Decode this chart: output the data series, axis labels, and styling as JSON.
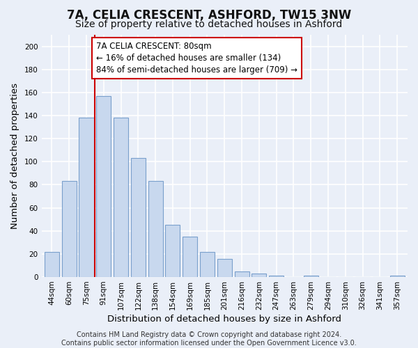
{
  "title": "7A, CELIA CRESCENT, ASHFORD, TW15 3NW",
  "subtitle": "Size of property relative to detached houses in Ashford",
  "xlabel": "Distribution of detached houses by size in Ashford",
  "ylabel": "Number of detached properties",
  "bar_labels": [
    "44sqm",
    "60sqm",
    "75sqm",
    "91sqm",
    "107sqm",
    "122sqm",
    "138sqm",
    "154sqm",
    "169sqm",
    "185sqm",
    "201sqm",
    "216sqm",
    "232sqm",
    "247sqm",
    "263sqm",
    "279sqm",
    "294sqm",
    "310sqm",
    "326sqm",
    "341sqm",
    "357sqm"
  ],
  "bar_values": [
    22,
    83,
    138,
    157,
    138,
    103,
    83,
    45,
    35,
    22,
    16,
    5,
    3,
    1,
    0,
    1,
    0,
    0,
    0,
    0,
    1
  ],
  "bar_color": "#c8d8ee",
  "bar_edge_color": "#7aa0cc",
  "vline_x_index": 2.5,
  "vline_color": "#cc0000",
  "annotation_text": "7A CELIA CRESCENT: 80sqm\n← 16% of detached houses are smaller (134)\n84% of semi-detached houses are larger (709) →",
  "annotation_box_color": "#ffffff",
  "annotation_box_edge": "#cc0000",
  "ylim": [
    0,
    210
  ],
  "yticks": [
    0,
    20,
    40,
    60,
    80,
    100,
    120,
    140,
    160,
    180,
    200
  ],
  "footer": "Contains HM Land Registry data © Crown copyright and database right 2024.\nContains public sector information licensed under the Open Government Licence v3.0.",
  "background_color": "#eaeff8",
  "grid_color": "#ffffff",
  "title_fontsize": 12,
  "subtitle_fontsize": 10,
  "axis_label_fontsize": 9.5,
  "tick_fontsize": 7.5,
  "footer_fontsize": 7,
  "annotation_fontsize": 8.5
}
